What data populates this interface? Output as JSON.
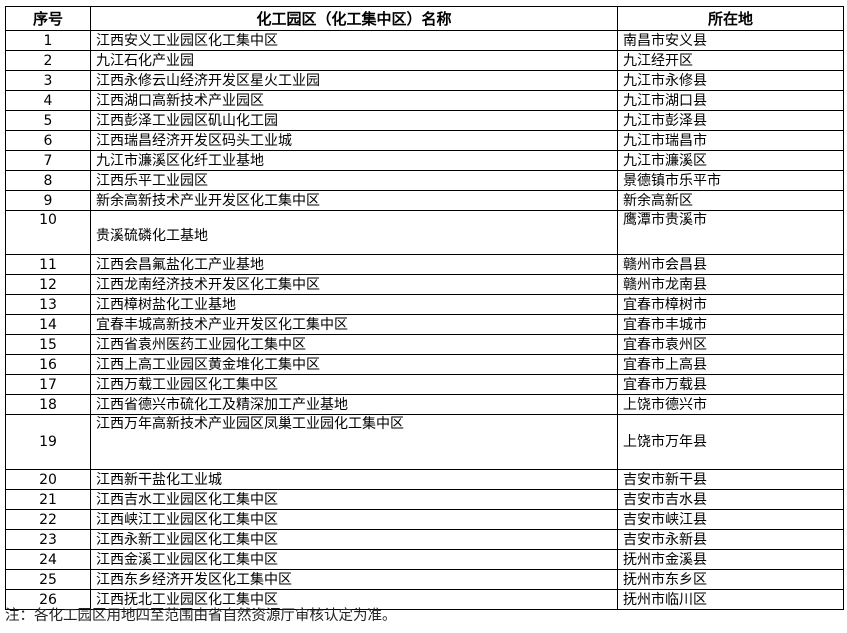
{
  "table": {
    "headers": [
      "序号",
      "化工园区（化工集中区）名称",
      "所在地"
    ],
    "rows": [
      {
        "no": "1",
        "name": "江西安义工业园区化工集中区",
        "location": "南昌市安义县"
      },
      {
        "no": "2",
        "name": "九江石化产业园",
        "location": "九江经开区"
      },
      {
        "no": "3",
        "name": "江西永修云山经济开发区星火工业园",
        "location": "九江市永修县"
      },
      {
        "no": "4",
        "name": "江西湖口高新技术产业园区",
        "location": "九江市湖口县"
      },
      {
        "no": "5",
        "name": "江西彭泽工业园区矶山化工园",
        "location": "九江市彭泽县"
      },
      {
        "no": "6",
        "name": "江西瑞昌经济开发区码头工业城",
        "location": "九江市瑞昌市"
      },
      {
        "no": "7",
        "name": "九江市濂溪区化纤工业基地",
        "location": "九江市濂溪区"
      },
      {
        "no": "8",
        "name": "江西乐平工业园区",
        "location": "景德镇市乐平市"
      },
      {
        "no": "9",
        "name": "新余高新技术产业开发区化工集中区",
        "location": "新余高新区"
      },
      {
        "no": "10",
        "name": "贵溪硫磷化工基地",
        "location": "鹰潭市贵溪市"
      },
      {
        "no": "11",
        "name": "江西会昌氟盐化工产业基地",
        "location": "赣州市会昌县"
      },
      {
        "no": "12",
        "name": "江西龙南经济技术开发区化工集中区",
        "location": "赣州市龙南县"
      },
      {
        "no": "13",
        "name": "江西樟树盐化工业基地",
        "location": "宜春市樟树市"
      },
      {
        "no": "14",
        "name": "宜春丰城高新技术产业开发区化工集中区",
        "location": "宜春市丰城市"
      },
      {
        "no": "15",
        "name": "江西省袁州医药工业园化工集中区",
        "location": "宜春市袁州区"
      },
      {
        "no": "16",
        "name": "江西上高工业园区黄金堆化工集中区",
        "location": "宜春市上高县"
      },
      {
        "no": "17",
        "name": "江西万载工业园区化工集中区",
        "location": "宜春市万载县"
      },
      {
        "no": "18",
        "name": "江西省德兴市硫化工及精深加工产业基地",
        "location": "上饶市德兴市"
      },
      {
        "no": "19",
        "name": "江西万年高新技术产业园区凤巢工业园化工集中区",
        "location": "上饶市万年县"
      },
      {
        "no": "20",
        "name": "江西新干盐化工业城",
        "location": "吉安市新干县"
      },
      {
        "no": "21",
        "name": "江西吉水工业园区化工集中区",
        "location": "吉安市吉水县"
      },
      {
        "no": "22",
        "name": "江西峡江工业园区化工集中区",
        "location": "吉安市峡江县"
      },
      {
        "no": "23",
        "name": "江西永新工业园区化工集中区",
        "location": "吉安市永新县"
      },
      {
        "no": "24",
        "name": "江西金溪工业园区化工集中区",
        "location": "抚州市金溪县"
      },
      {
        "no": "25",
        "name": "江西东乡经济开发区化工集中区",
        "location": "抚州市东乡区"
      },
      {
        "no": "26",
        "name": "江西抚北工业园区化工集中区",
        "location": "抚州市临川区"
      }
    ]
  },
  "note": "注：各化工园区用地四至范围由省自然资源厅审核认定为准。"
}
